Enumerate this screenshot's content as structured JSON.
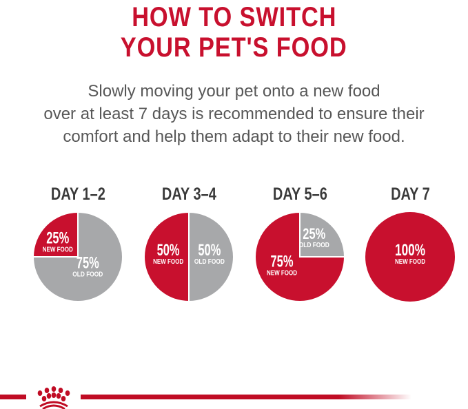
{
  "title_lines": [
    "HOW TO SWITCH",
    "YOUR PET'S FOOD"
  ],
  "intro_lines": [
    "Slowly moving your pet onto a new food",
    "over at least 7 days is recommended to ensure their",
    "comfort and help them adapt to their new food."
  ],
  "colors": {
    "new_food": "#c8102e",
    "old_food": "#a7a8aa",
    "title": "#c8102e",
    "text": "#575757"
  },
  "logo": "royal-canin-crown",
  "chart_data": [
    {
      "type": "pie",
      "title": "DAY 1–2",
      "slices": [
        {
          "label": "NEW FOOD",
          "value": 25,
          "text": "25%"
        },
        {
          "label": "OLD FOOD",
          "value": 75,
          "text": "75%"
        }
      ]
    },
    {
      "type": "pie",
      "title": "DAY 3–4",
      "slices": [
        {
          "label": "NEW FOOD",
          "value": 50,
          "text": "50%"
        },
        {
          "label": "OLD FOOD",
          "value": 50,
          "text": "50%"
        }
      ]
    },
    {
      "type": "pie",
      "title": "DAY 5–6",
      "slices": [
        {
          "label": "NEW FOOD",
          "value": 75,
          "text": "75%"
        },
        {
          "label": "OLD FOOD",
          "value": 25,
          "text": "25%"
        }
      ]
    },
    {
      "type": "pie",
      "title": "DAY 7",
      "slices": [
        {
          "label": "NEW FOOD",
          "value": 100,
          "text": "100%"
        }
      ]
    }
  ]
}
